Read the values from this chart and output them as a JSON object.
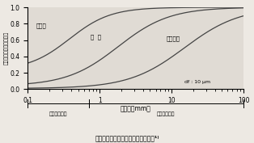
{
  "xlabel": "繊維長（mm）",
  "ylabel": "無次元化繊維物性（－）",
  "xmin": 0.1,
  "xmax": 100,
  "ymin": 0,
  "ymax": 1.0,
  "annotation_df": "df : 10 μm",
  "label_elasticity": "弾性率",
  "label_strength": "強  度",
  "label_impact": "衝撃強度",
  "range_short": "短繊維レンジ",
  "range_long": "長繊維レンジ",
  "curve_color": "#444444",
  "bg_color": "#ede9e3",
  "plot_bg": "#e0dbd4",
  "caption": "図１　物性改善効果と繊維長の関係"
}
